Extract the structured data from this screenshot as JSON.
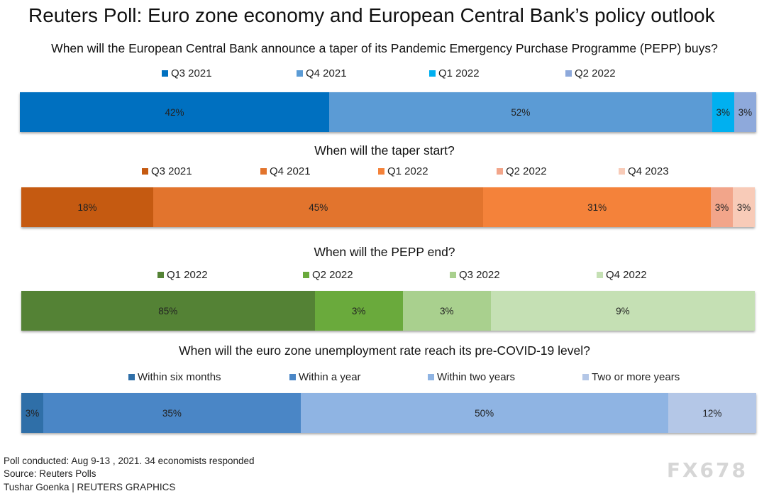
{
  "title": "Reuters Poll: Euro zone economy and European Central Bank’s policy outlook",
  "chart_data": [
    {
      "type": "bar",
      "orientation": "horizontal-stacked-100",
      "title": "When will the European Central Bank announce a taper of its Pandemic Emergency Purchase Programme (PEPP) buys?",
      "categories": [
        "Q3 2021",
        "Q4 2021",
        "Q1 2022",
        "Q2 2022"
      ],
      "values": [
        42,
        52,
        3,
        3
      ],
      "labels": [
        "42%",
        "52%",
        "3%",
        "3%"
      ],
      "colors": [
        "#0070c0",
        "#5b9bd5",
        "#00b0f0",
        "#8ea9db"
      ]
    },
    {
      "type": "bar",
      "orientation": "horizontal-stacked-100",
      "title": "When will the taper start?",
      "categories": [
        "Q3 2021",
        "Q4 2021",
        "Q1 2022",
        "Q2 2022",
        "Q4 2023"
      ],
      "values": [
        18,
        45,
        31,
        3,
        3
      ],
      "labels": [
        "18%",
        "45%",
        "31%",
        "3%",
        "3%"
      ],
      "colors": [
        "#c55a11",
        "#e2742d",
        "#f4823a",
        "#f2a58a",
        "#f8cbb8"
      ]
    },
    {
      "type": "bar",
      "orientation": "horizontal-stacked-100",
      "title": "When will the PEPP end?",
      "categories": [
        "Q1 2022",
        "Q2 2022",
        "Q3 2022",
        "Q4 2022"
      ],
      "values": [
        85,
        3,
        3,
        9
      ],
      "labels": [
        "85%",
        "3%",
        "3%",
        "9%"
      ],
      "value_widths": [
        40,
        12,
        12,
        36
      ],
      "colors": [
        "#548235",
        "#6aaa3c",
        "#a9d08e",
        "#c5e0b4"
      ]
    },
    {
      "type": "bar",
      "orientation": "horizontal-stacked-100",
      "title": "When will the euro zone unemployment rate reach its pre-COVID-19 level?",
      "categories": [
        "Within six months",
        "Within a year",
        "Within two years",
        "Two or more years"
      ],
      "values": [
        3,
        35,
        50,
        12
      ],
      "labels": [
        "3%",
        "35%",
        "50%",
        "12%"
      ],
      "colors": [
        "#2f6fa8",
        "#4a86c6",
        "#8fb4e3",
        "#b4c7e7"
      ]
    }
  ],
  "footer": {
    "line1": "Poll conducted: Aug 9-13 , 2021. 34 economists responded",
    "line2": "Source: Reuters Polls",
    "line3": "Tushar Goenka | REUTERS GRAPHICS"
  },
  "watermark": "FX678"
}
